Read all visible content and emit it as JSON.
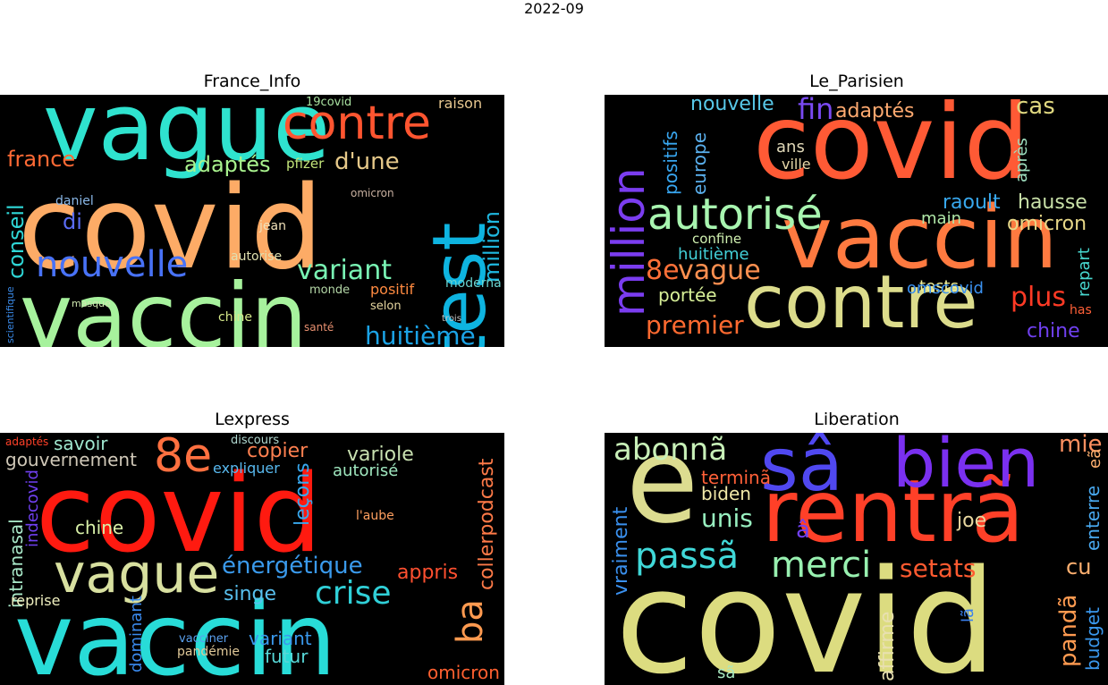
{
  "figure_title": "2022-09",
  "panels": [
    {
      "title": "France_Info",
      "words": [
        {
          "text": "covid",
          "color": "#fdab66"
        },
        {
          "text": "vaccin",
          "color": "#a7f29d"
        },
        {
          "text": "vague",
          "color": "#2fe3cf"
        },
        {
          "text": "test",
          "color": "#0eb4e0"
        },
        {
          "text": "contre",
          "color": "#ff5530"
        },
        {
          "text": "nouvelle",
          "color": "#4872f7"
        },
        {
          "text": "variant",
          "color": "#79f4b4"
        },
        {
          "text": "huitième",
          "color": "#1ba3e6"
        },
        {
          "text": "adaptés",
          "color": "#a9f38e"
        },
        {
          "text": "d'une",
          "color": "#e6c98a"
        },
        {
          "text": "france",
          "color": "#ff6a35"
        },
        {
          "text": "conseil",
          "color": "#2fd7d7"
        },
        {
          "text": "million",
          "color": "#1fb8e0"
        },
        {
          "text": "di",
          "color": "#5a6cf4"
        },
        {
          "text": "daniel",
          "color": "#8ab8e8"
        },
        {
          "text": "positif",
          "color": "#ff8a40"
        },
        {
          "text": "pfizer",
          "color": "#c3e57a"
        },
        {
          "text": "raison",
          "color": "#e8c890"
        },
        {
          "text": "moderna",
          "color": "#6ad4d0"
        },
        {
          "text": "autorise",
          "color": "#e0e0b0"
        },
        {
          "text": "chine",
          "color": "#d6e98a"
        },
        {
          "text": "selon",
          "color": "#e6d6a0"
        },
        {
          "text": "jean",
          "color": "#f0e0b8"
        },
        {
          "text": "monde",
          "color": "#b5d8a8"
        },
        {
          "text": "19covid",
          "color": "#a8e0a0"
        },
        {
          "text": "scientifique",
          "color": "#3a8ae8"
        },
        {
          "text": "omicron",
          "color": "#c8b0a0"
        },
        {
          "text": "masque",
          "color": "#d0e8b0"
        },
        {
          "text": "santé",
          "color": "#e89070"
        },
        {
          "text": "trois",
          "color": "#c0c0c0"
        }
      ]
    },
    {
      "title": "Le_Parisien",
      "words": [
        {
          "text": "covid",
          "color": "#ff5a35"
        },
        {
          "text": "vaccin",
          "color": "#ff7a40"
        },
        {
          "text": "contre",
          "color": "#dcdc8c"
        },
        {
          "text": "autorisé",
          "color": "#a8f5b0"
        },
        {
          "text": "million",
          "color": "#7b3df0"
        },
        {
          "text": "premier",
          "color": "#ff6a30"
        },
        {
          "text": "vague",
          "color": "#ff9050"
        },
        {
          "text": "8e",
          "color": "#ff7038"
        },
        {
          "text": "fin",
          "color": "#7a4af2"
        },
        {
          "text": "adaptés",
          "color": "#ffaa70"
        },
        {
          "text": "cas",
          "color": "#e0d880"
        },
        {
          "text": "nouvelle",
          "color": "#58c8e8"
        },
        {
          "text": "positifs",
          "color": "#38a6f0"
        },
        {
          "text": "europe",
          "color": "#5ab0ee"
        },
        {
          "text": "huitième",
          "color": "#42d0d8"
        },
        {
          "text": "hausse",
          "color": "#c8e0a8"
        },
        {
          "text": "raoult",
          "color": "#38a8ee"
        },
        {
          "text": "omicron",
          "color": "#e8d888"
        },
        {
          "text": "plus",
          "color": "#ff3a25"
        },
        {
          "text": "chine",
          "color": "#7040f0"
        },
        {
          "text": "tests",
          "color": "#f0f098"
        },
        {
          "text": "portée",
          "color": "#d8f098"
        },
        {
          "text": "omscovid",
          "color": "#3a90ee"
        },
        {
          "text": "main",
          "color": "#b0e8a8"
        },
        {
          "text": "confine",
          "color": "#d0f0b0"
        },
        {
          "text": "ans",
          "color": "#e0d8b8"
        },
        {
          "text": "ville",
          "color": "#e8d8a8"
        },
        {
          "text": "après",
          "color": "#a0e0c0"
        },
        {
          "text": "repart",
          "color": "#48d8d0"
        },
        {
          "text": "has",
          "color": "#ff6038"
        }
      ]
    },
    {
      "title": "Lexpress",
      "words": [
        {
          "text": "covid",
          "color": "#ff1a10"
        },
        {
          "text": "vaccin",
          "color": "#28dcd8"
        },
        {
          "text": "vague",
          "color": "#d8e0a0"
        },
        {
          "text": "8e",
          "color": "#ff7040"
        },
        {
          "text": "crise",
          "color": "#30d0d8"
        },
        {
          "text": "ba",
          "color": "#ff9a50"
        },
        {
          "text": "énergétique",
          "color": "#3a9aec"
        },
        {
          "text": "gouvernement",
          "color": "#d0c8b8"
        },
        {
          "text": "savoir",
          "color": "#a0e8d0"
        },
        {
          "text": "copier",
          "color": "#ff8050"
        },
        {
          "text": "variole",
          "color": "#c8e0b0"
        },
        {
          "text": "autorisé",
          "color": "#a0e8c0"
        },
        {
          "text": "leçons",
          "color": "#38a8ee"
        },
        {
          "text": "collerpodcast",
          "color": "#ff7a48"
        },
        {
          "text": "appris",
          "color": "#ff5030"
        },
        {
          "text": "singe",
          "color": "#58c0ee"
        },
        {
          "text": "variant",
          "color": "#3a9aee"
        },
        {
          "text": "futur",
          "color": "#58d8d8"
        },
        {
          "text": "omicron",
          "color": "#ff6030"
        },
        {
          "text": "chine",
          "color": "#d8f0a8"
        },
        {
          "text": "intranasal",
          "color": "#a8e8c8"
        },
        {
          "text": "indecovid",
          "color": "#7040f0"
        },
        {
          "text": "dominant",
          "color": "#3a8aee"
        },
        {
          "text": "expliquer",
          "color": "#58b8ee"
        },
        {
          "text": "reprise",
          "color": "#f0f0c0"
        },
        {
          "text": "pandémie",
          "color": "#e0c898"
        },
        {
          "text": "vacciner",
          "color": "#5aa0ee"
        },
        {
          "text": "discours",
          "color": "#b0d8d0"
        },
        {
          "text": "adaptés",
          "color": "#ff4028"
        },
        {
          "text": "l'aube",
          "color": "#ffa060"
        }
      ]
    },
    {
      "title": "Liberation",
      "words": [
        {
          "text": "covid",
          "color": "#dcdc80"
        },
        {
          "text": "e",
          "color": "#dcdc90"
        },
        {
          "text": "rentrã",
          "color": "#ff4028"
        },
        {
          "text": "sâ",
          "color": "#5048f0"
        },
        {
          "text": "bien",
          "color": "#7a30f0"
        },
        {
          "text": "abonnã",
          "color": "#c8f0b8"
        },
        {
          "text": "passã",
          "color": "#40d8d8"
        },
        {
          "text": "merci",
          "color": "#98f0b0"
        },
        {
          "text": "unis",
          "color": "#98f0c0"
        },
        {
          "text": "setats",
          "color": "#ff5a30"
        },
        {
          "text": "terminã",
          "color": "#ff6038"
        },
        {
          "text": "biden",
          "color": "#f0e8a8"
        },
        {
          "text": "mie",
          "color": "#ff9060"
        },
        {
          "text": "joe",
          "color": "#e8d8a0"
        },
        {
          "text": "â",
          "color": "#7040f0"
        },
        {
          "text": "cu",
          "color": "#ffb070"
        },
        {
          "text": "vraiment",
          "color": "#3a90ee"
        },
        {
          "text": "affirme",
          "color": "#e8e0b0"
        },
        {
          "text": "pandã",
          "color": "#ff9a50"
        },
        {
          "text": "budget",
          "color": "#3a98ee"
        },
        {
          "text": "enterre",
          "color": "#48a8ee"
        },
        {
          "text": "eã",
          "color": "#ffb070"
        },
        {
          "text": "lã",
          "color": "#3a80ee"
        },
        {
          "text": "sã",
          "color": "#a8e8c0"
        }
      ]
    }
  ]
}
